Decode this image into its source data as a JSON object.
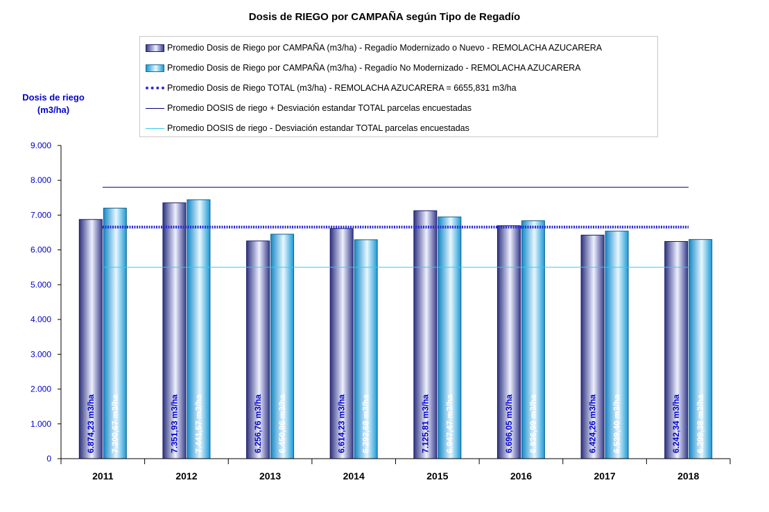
{
  "chart_data": {
    "type": "bar",
    "title": "Dosis de RIEGO por CAMPAÑA según Tipo de Regadío",
    "ylabel": "Dosis de riego (m3/ha)",
    "ylabel_lines": [
      "Dosis de riego",
      "(m3/ha)"
    ],
    "xlabel": "",
    "categories": [
      "2011",
      "2012",
      "2013",
      "2014",
      "2015",
      "2016",
      "2017",
      "2018"
    ],
    "ylim": [
      0,
      9000
    ],
    "yticks": [
      0,
      1000,
      2000,
      3000,
      4000,
      5000,
      6000,
      7000,
      8000,
      9000
    ],
    "ytick_labels": [
      "0",
      "1.000",
      "2.000",
      "3.000",
      "4.000",
      "5.000",
      "6.000",
      "7.000",
      "8.000",
      "9.000"
    ],
    "series": [
      {
        "name": "Promedio Dosis de Riego por CAMPAÑA (m3/ha) - Regadío Modernizado o Nuevo - REMOLACHA AZUCARERA",
        "values": [
          6874.23,
          7351.93,
          6256.76,
          6614.23,
          7125.81,
          6696.05,
          6424.26,
          6242.34
        ],
        "labels": [
          "6.874,23 m3/ha",
          "7.351,93 m3/ha",
          "6.256,76 m3/ha",
          "6.614,23 m3/ha",
          "7.125,81 m3/ha",
          "6.696,05 m3/ha",
          "6.424,26 m3/ha",
          "6.242,34 m3/ha"
        ],
        "color": "#3a3f8c",
        "label_color": "#0000cc"
      },
      {
        "name": "Promedio Dosis de Riego por CAMPAÑA (m3/ha) - Regadío No Modernizado - REMOLACHA AZUCARERA",
        "values": [
          7200.67,
          7441.57,
          6450.86,
          6292.68,
          6947.47,
          6836.99,
          6539.4,
          6299.38
        ],
        "labels": [
          "7.200,67 m3/ha",
          "7.441,57 m3/ha",
          "6.450,86 m3/ha",
          "6.292,68 m3/ha",
          "6.947,47 m3/ha",
          "6.836,99 m3/ha",
          "6.539,40 m3/ha",
          "6.299,38 m3/ha"
        ],
        "color": "#1a9ad6",
        "label_color": "#ffffff"
      }
    ],
    "reference_lines": [
      {
        "name": "Promedio Dosis de Riego TOTAL (m3/ha) - REMOLACHA AZUCARERA = 6655,831 m3/ha",
        "value": 6655.831,
        "color": "#2b2bd6",
        "style": "dotted-thick"
      },
      {
        "name": "Promedio DOSIS de riego + Desviación estandar TOTAL parcelas encuestadas",
        "value": 7800,
        "color": "#000080",
        "style": "solid-thin"
      },
      {
        "name": "Promedio DOSIS de riego - Desviación estandar TOTAL parcelas encuestadas",
        "value": 5500,
        "color": "#33ccee",
        "style": "solid-thin"
      }
    ],
    "legend_position": "top",
    "grid": false
  }
}
